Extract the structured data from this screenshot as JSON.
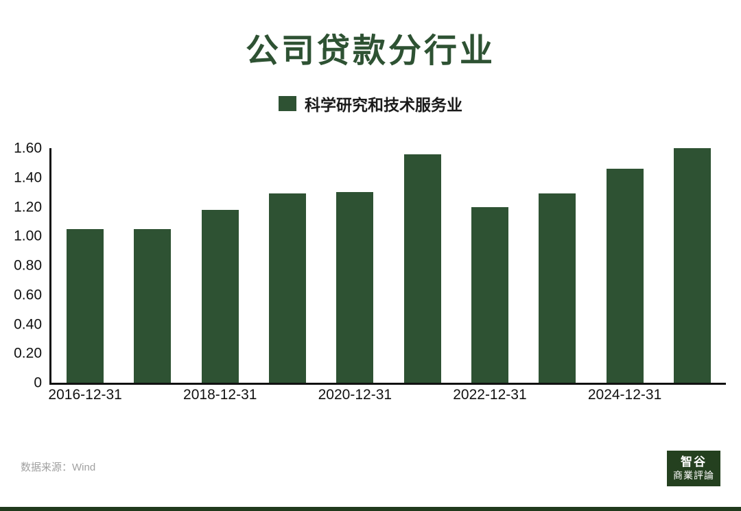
{
  "title": "公司贷款分行业",
  "legend": {
    "label": "科学研究和技术服务业",
    "color": "#2e5233"
  },
  "footer": {
    "source": "数据来源：Wind"
  },
  "logo": {
    "line1": "智谷",
    "line2": "商業評論"
  },
  "chart_data": {
    "type": "bar",
    "title": "公司贷款分行业",
    "legend": "科学研究和技术服务业",
    "values": [
      1.05,
      1.05,
      1.18,
      1.29,
      1.3,
      1.56,
      1.2,
      1.29,
      1.46,
      1.6
    ],
    "x_tick_labels": [
      "2016-12-31",
      "2018-12-31",
      "2020-12-31",
      "2022-12-31",
      "2024-12-31"
    ],
    "x_tick_positions": [
      0,
      2,
      4,
      6,
      8
    ],
    "y_tick_labels": [
      "0",
      "0.20",
      "0.40",
      "0.60",
      "0.80",
      "1.00",
      "1.20",
      "1.40",
      "1.60"
    ],
    "y_tick_values": [
      0,
      0.2,
      0.4,
      0.6,
      0.8,
      1.0,
      1.2,
      1.4,
      1.6
    ],
    "ylim": [
      0,
      1.6
    ],
    "bar_color": "#2e5233",
    "grid": false,
    "legend_position": "top"
  }
}
